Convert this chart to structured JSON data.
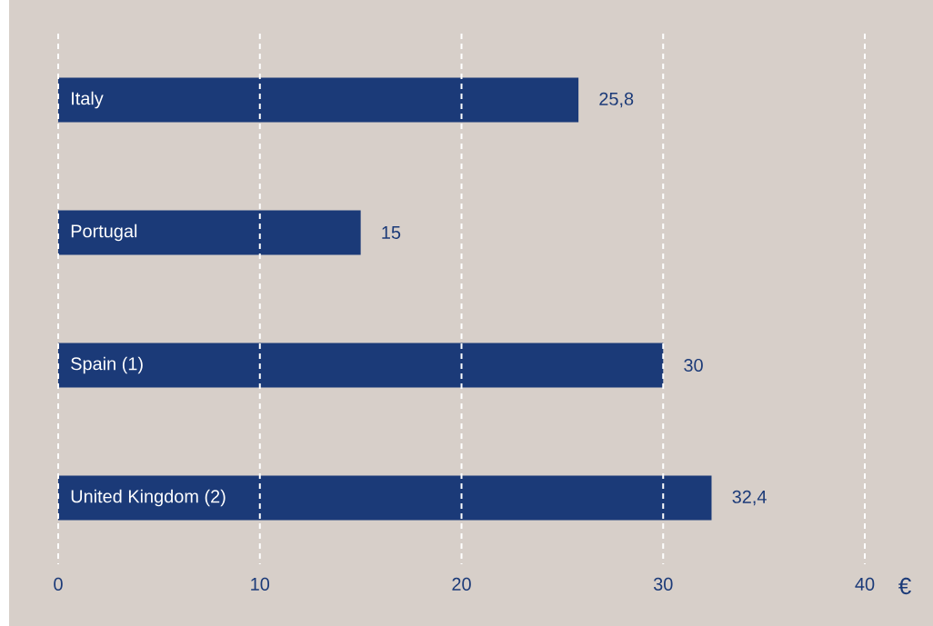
{
  "chart_data": {
    "type": "bar",
    "orientation": "horizontal",
    "xlabel": "€",
    "categories": [
      "Italy",
      "Portugal",
      "Spain (1)",
      "United Kingdom (2)"
    ],
    "values": [
      25.8,
      15,
      30,
      32.4
    ],
    "value_labels": [
      "25,8",
      "15",
      "30",
      "32,4"
    ],
    "color": "#1b3a78",
    "xlim": [
      0,
      40
    ],
    "xticks": [
      0,
      10,
      20,
      30,
      40
    ],
    "grid": "x"
  }
}
